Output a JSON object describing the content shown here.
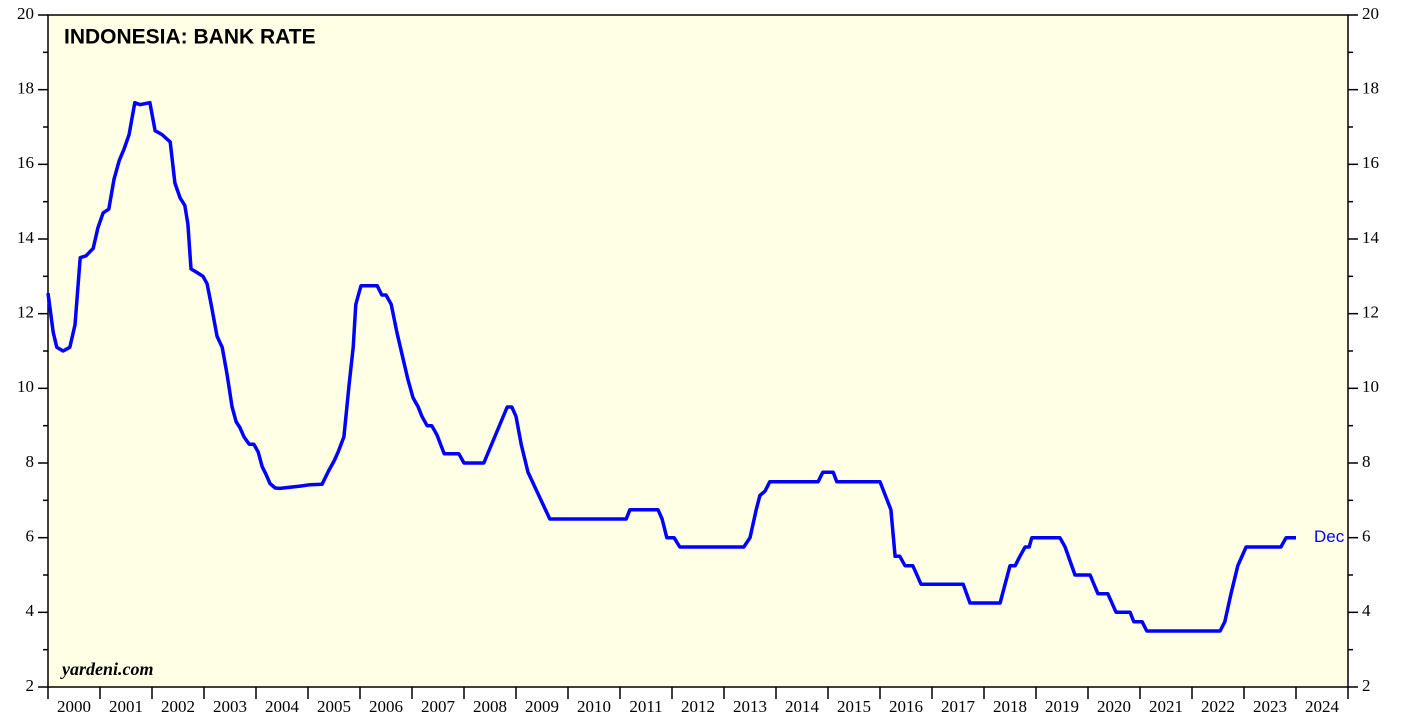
{
  "chart_data": {
    "type": "line",
    "title": "INDONESIA: BANK RATE",
    "source": "yardeni.com",
    "end_label": "Dec",
    "categories": [
      "2000",
      "2001",
      "2002",
      "2003",
      "2004",
      "2005",
      "2006",
      "2007",
      "2008",
      "2009",
      "2010",
      "2011",
      "2012",
      "2013",
      "2014",
      "2015",
      "2016",
      "2017",
      "2018",
      "2019",
      "2020",
      "2021",
      "2022",
      "2023",
      "2024"
    ],
    "xlim": [
      2000,
      2025
    ],
    "xticks": [
      2000,
      2001,
      2002,
      2003,
      2004,
      2005,
      2006,
      2007,
      2008,
      2009,
      2010,
      2011,
      2012,
      2013,
      2014,
      2015,
      2016,
      2017,
      2018,
      2019,
      2020,
      2021,
      2022,
      2023,
      2024,
      2025
    ],
    "ylim": [
      2,
      20
    ],
    "yticks": [
      2,
      4,
      6,
      8,
      10,
      12,
      14,
      16,
      18,
      20
    ],
    "yminorticks": [
      3,
      5,
      7,
      9,
      11,
      13,
      15,
      17,
      19
    ],
    "y2lim": [
      2,
      20
    ],
    "y2ticks": [
      2,
      4,
      6,
      8,
      10,
      12,
      14,
      16,
      18,
      20
    ],
    "background": "#ffffe5",
    "series": [
      {
        "name": "Bank Rate",
        "color": "#0000ff",
        "x": [
          2000.0,
          2000.1,
          2000.17,
          2000.29,
          2000.42,
          2000.52,
          2000.62,
          2000.73,
          2000.87,
          2000.96,
          2001.06,
          2001.17,
          2001.27,
          2001.37,
          2001.46,
          2001.56,
          2001.67,
          2001.77,
          2001.96,
          2002.06,
          2002.19,
          2002.35,
          2002.44,
          2002.54,
          2002.63,
          2002.69,
          2002.75,
          2002.87,
          2002.98,
          2003.06,
          2003.13,
          2003.25,
          2003.35,
          2003.44,
          2003.54,
          2003.62,
          2003.69,
          2003.77,
          2003.87,
          2003.96,
          2004.04,
          2004.12,
          2004.19,
          2004.27,
          2004.37,
          2004.46,
          2004.85,
          2005.04,
          2005.27,
          2005.4,
          2005.5,
          2005.58,
          2005.69,
          2005.79,
          2005.87,
          2005.92,
          2006.02,
          2006.33,
          2006.42,
          2006.5,
          2006.6,
          2006.71,
          2006.81,
          2006.92,
          2007.02,
          2007.12,
          2007.19,
          2007.29,
          2007.38,
          2007.48,
          2007.62,
          2007.9,
          2008.0,
          2008.38,
          2008.83,
          2008.92,
          2009.0,
          2009.1,
          2009.23,
          2009.65,
          2011.12,
          2011.19,
          2011.73,
          2011.81,
          2011.9,
          2012.04,
          2012.15,
          2013.38,
          2013.5,
          2013.62,
          2013.69,
          2013.79,
          2013.88,
          2014.81,
          2014.9,
          2015.1,
          2015.17,
          2016.0,
          2016.21,
          2016.29,
          2016.38,
          2016.48,
          2016.63,
          2016.79,
          2017.6,
          2017.73,
          2018.31,
          2018.5,
          2018.6,
          2018.69,
          2018.79,
          2018.87,
          2018.92,
          2019.46,
          2019.56,
          2019.75,
          2020.04,
          2020.19,
          2020.38,
          2020.54,
          2020.81,
          2020.88,
          2021.04,
          2021.13,
          2022.54,
          2022.63,
          2022.75,
          2022.88,
          2023.04,
          2023.71,
          2023.81,
          2024.0
        ],
        "values": [
          12.55,
          11.5,
          11.1,
          11.0,
          11.1,
          11.7,
          13.5,
          13.55,
          13.75,
          14.3,
          14.7,
          14.8,
          15.6,
          16.1,
          16.4,
          16.8,
          17.65,
          17.6,
          17.65,
          16.9,
          16.8,
          16.6,
          15.5,
          15.1,
          14.9,
          14.4,
          13.2,
          13.1,
          13.0,
          12.8,
          12.3,
          11.4,
          11.1,
          10.4,
          9.5,
          9.1,
          8.95,
          8.7,
          8.5,
          8.5,
          8.3,
          7.9,
          7.7,
          7.45,
          7.33,
          7.32,
          7.38,
          7.42,
          7.43,
          7.8,
          8.05,
          8.3,
          8.7,
          10.1,
          11.1,
          12.25,
          12.75,
          12.75,
          12.5,
          12.5,
          12.25,
          11.5,
          10.9,
          10.25,
          9.75,
          9.5,
          9.25,
          9.0,
          9.0,
          8.75,
          8.25,
          8.25,
          8.0,
          8.0,
          9.5,
          9.5,
          9.25,
          8.5,
          7.75,
          6.5,
          6.5,
          6.75,
          6.75,
          6.5,
          6.0,
          6.0,
          5.75,
          5.75,
          6.0,
          6.75,
          7.13,
          7.25,
          7.5,
          7.5,
          7.75,
          7.75,
          7.5,
          7.5,
          6.75,
          5.5,
          5.5,
          5.25,
          5.25,
          4.75,
          4.75,
          4.25,
          4.25,
          5.25,
          5.25,
          5.5,
          5.75,
          5.75,
          6.0,
          6.0,
          5.75,
          5.0,
          5.0,
          4.5,
          4.5,
          4.0,
          4.0,
          3.75,
          3.75,
          3.5,
          3.5,
          3.75,
          4.5,
          5.25,
          5.75,
          5.75,
          6.0,
          6.0
        ]
      }
    ]
  }
}
